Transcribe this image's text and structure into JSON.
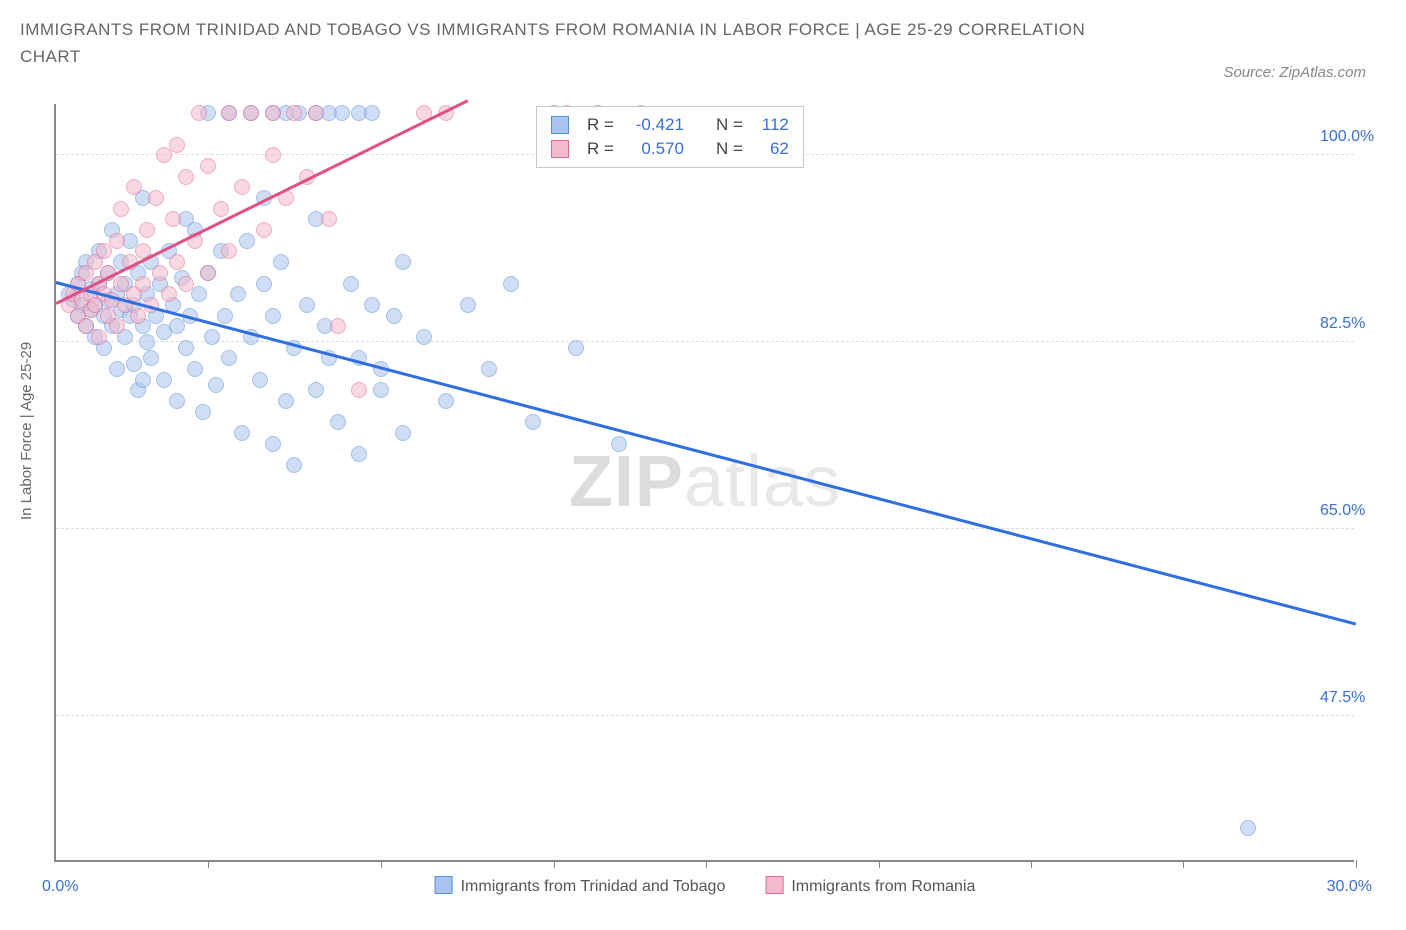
{
  "title": "IMMIGRANTS FROM TRINIDAD AND TOBAGO VS IMMIGRANTS FROM ROMANIA IN LABOR FORCE | AGE 25-29 CORRELATION CHART",
  "source": "Source: ZipAtlas.com",
  "y_axis_label": "In Labor Force | Age 25-29",
  "watermark_a": "ZIP",
  "watermark_b": "atlas",
  "chart": {
    "type": "scatter",
    "xlim": [
      0,
      30
    ],
    "ylim": [
      34,
      105
    ],
    "y_ticks": [
      47.5,
      65.0,
      82.5,
      100.0
    ],
    "y_tick_labels": [
      "47.5%",
      "65.0%",
      "82.5%",
      "100.0%"
    ],
    "x_ticks": [
      3.5,
      7.5,
      11.5,
      15,
      19,
      22.5,
      26,
      30
    ],
    "x_range_labels": [
      "0.0%",
      "30.0%"
    ],
    "background_color": "#ffffff",
    "grid_color": "#dddddd",
    "axis_color": "#888888",
    "marker_radius": 8,
    "marker_opacity": 0.55,
    "series": [
      {
        "name": "Immigrants from Trinidad and Tobago",
        "color_fill": "#a9c4ee",
        "color_stroke": "#5a8fd8",
        "R_label": "R =",
        "R": "-0.421",
        "N_label": "N =",
        "N": "112",
        "trend": {
          "x1": 0,
          "y1": 88,
          "x2": 30,
          "y2": 56,
          "color": "#2f6fe0",
          "width": 2.5
        },
        "points": [
          [
            0.3,
            87
          ],
          [
            0.4,
            86.5
          ],
          [
            0.5,
            85
          ],
          [
            0.5,
            88
          ],
          [
            0.6,
            86
          ],
          [
            0.6,
            89
          ],
          [
            0.7,
            84
          ],
          [
            0.7,
            90
          ],
          [
            0.8,
            85.5
          ],
          [
            0.8,
            87.5
          ],
          [
            0.9,
            86
          ],
          [
            0.9,
            83
          ],
          [
            1.0,
            88
          ],
          [
            1.0,
            91
          ],
          [
            1.1,
            85
          ],
          [
            1.1,
            82
          ],
          [
            1.2,
            89
          ],
          [
            1.2,
            86.5
          ],
          [
            1.3,
            84
          ],
          [
            1.3,
            93
          ],
          [
            1.4,
            87
          ],
          [
            1.4,
            80
          ],
          [
            1.5,
            90
          ],
          [
            1.5,
            85.5
          ],
          [
            1.6,
            88
          ],
          [
            1.6,
            83
          ],
          [
            1.7,
            85
          ],
          [
            1.7,
            92
          ],
          [
            1.8,
            86
          ],
          [
            1.8,
            80.5
          ],
          [
            1.9,
            89
          ],
          [
            1.9,
            78
          ],
          [
            2.0,
            84
          ],
          [
            2.0,
            96
          ],
          [
            2.1,
            87
          ],
          [
            2.1,
            82.5
          ],
          [
            2.2,
            90
          ],
          [
            2.2,
            81
          ],
          [
            2.3,
            85
          ],
          [
            2.4,
            88
          ],
          [
            2.5,
            83.5
          ],
          [
            2.5,
            79
          ],
          [
            2.6,
            91
          ],
          [
            2.7,
            86
          ],
          [
            2.8,
            84
          ],
          [
            2.8,
            77
          ],
          [
            2.9,
            88.5
          ],
          [
            3.0,
            82
          ],
          [
            3.0,
            94
          ],
          [
            3.1,
            85
          ],
          [
            3.2,
            80
          ],
          [
            3.3,
            87
          ],
          [
            3.4,
            76
          ],
          [
            3.5,
            89
          ],
          [
            3.5,
            104
          ],
          [
            3.6,
            83
          ],
          [
            3.7,
            78.5
          ],
          [
            3.8,
            91
          ],
          [
            3.9,
            85
          ],
          [
            4.0,
            81
          ],
          [
            4.0,
            104
          ],
          [
            4.2,
            87
          ],
          [
            4.3,
            74
          ],
          [
            4.4,
            92
          ],
          [
            4.5,
            83
          ],
          [
            4.5,
            104
          ],
          [
            4.7,
            79
          ],
          [
            4.8,
            88
          ],
          [
            5.0,
            85
          ],
          [
            5.0,
            73
          ],
          [
            5.0,
            104
          ],
          [
            5.2,
            90
          ],
          [
            5.3,
            77
          ],
          [
            5.3,
            104
          ],
          [
            5.5,
            82
          ],
          [
            5.5,
            71
          ],
          [
            5.6,
            104
          ],
          [
            5.8,
            86
          ],
          [
            6.0,
            78
          ],
          [
            6.0,
            94
          ],
          [
            6.0,
            104
          ],
          [
            6.2,
            84
          ],
          [
            6.3,
            104
          ],
          [
            6.5,
            75
          ],
          [
            6.6,
            104
          ],
          [
            6.8,
            88
          ],
          [
            7.0,
            81
          ],
          [
            7.0,
            72
          ],
          [
            7.0,
            104
          ],
          [
            7.3,
            86
          ],
          [
            7.3,
            104
          ],
          [
            7.5,
            78
          ],
          [
            8.0,
            90
          ],
          [
            8.0,
            74
          ],
          [
            8.5,
            83
          ],
          [
            9.0,
            77
          ],
          [
            9.5,
            86
          ],
          [
            10.0,
            80
          ],
          [
            10.5,
            88
          ],
          [
            11.0,
            75
          ],
          [
            11.5,
            104
          ],
          [
            12.0,
            82
          ],
          [
            12.5,
            104
          ],
          [
            13.0,
            73
          ],
          [
            13.5,
            104
          ],
          [
            7.8,
            85
          ],
          [
            6.3,
            81
          ],
          [
            7.5,
            80
          ],
          [
            27.5,
            37
          ],
          [
            4.8,
            96
          ],
          [
            3.2,
            93
          ],
          [
            2.0,
            79
          ]
        ]
      },
      {
        "name": "Immigrants from Romania",
        "color_fill": "#f3b9cc",
        "color_stroke": "#e26a97",
        "R_label": "R =",
        "R": "0.570",
        "N_label": "N =",
        "N": "62",
        "trend": {
          "x1": 0,
          "y1": 86,
          "x2": 9.5,
          "y2": 105,
          "color": "#e05082",
          "width": 2.5
        },
        "points": [
          [
            0.3,
            86
          ],
          [
            0.4,
            87
          ],
          [
            0.5,
            85
          ],
          [
            0.5,
            88
          ],
          [
            0.6,
            86.5
          ],
          [
            0.7,
            84
          ],
          [
            0.7,
            89
          ],
          [
            0.8,
            87
          ],
          [
            0.8,
            85.5
          ],
          [
            0.9,
            90
          ],
          [
            0.9,
            86
          ],
          [
            1.0,
            88
          ],
          [
            1.0,
            83
          ],
          [
            1.1,
            91
          ],
          [
            1.1,
            87
          ],
          [
            1.2,
            85
          ],
          [
            1.2,
            89
          ],
          [
            1.3,
            86.5
          ],
          [
            1.4,
            92
          ],
          [
            1.4,
            84
          ],
          [
            1.5,
            88
          ],
          [
            1.5,
            95
          ],
          [
            1.6,
            86
          ],
          [
            1.7,
            90
          ],
          [
            1.8,
            87
          ],
          [
            1.8,
            97
          ],
          [
            1.9,
            85
          ],
          [
            2.0,
            91
          ],
          [
            2.0,
            88
          ],
          [
            2.1,
            93
          ],
          [
            2.2,
            86
          ],
          [
            2.3,
            96
          ],
          [
            2.4,
            89
          ],
          [
            2.5,
            100
          ],
          [
            2.6,
            87
          ],
          [
            2.7,
            94
          ],
          [
            2.8,
            90
          ],
          [
            2.8,
            101
          ],
          [
            3.0,
            88
          ],
          [
            3.0,
            98
          ],
          [
            3.2,
            92
          ],
          [
            3.3,
            104
          ],
          [
            3.5,
            89
          ],
          [
            3.5,
            99
          ],
          [
            3.8,
            95
          ],
          [
            4.0,
            91
          ],
          [
            4.0,
            104
          ],
          [
            4.3,
            97
          ],
          [
            4.5,
            104
          ],
          [
            4.8,
            93
          ],
          [
            5.0,
            100
          ],
          [
            5.0,
            104
          ],
          [
            5.3,
            96
          ],
          [
            5.5,
            104
          ],
          [
            5.8,
            98
          ],
          [
            6.0,
            104
          ],
          [
            6.3,
            94
          ],
          [
            6.5,
            84
          ],
          [
            7.0,
            78
          ],
          [
            8.5,
            104
          ],
          [
            9.0,
            104
          ],
          [
            11.8,
            104
          ]
        ]
      }
    ]
  }
}
